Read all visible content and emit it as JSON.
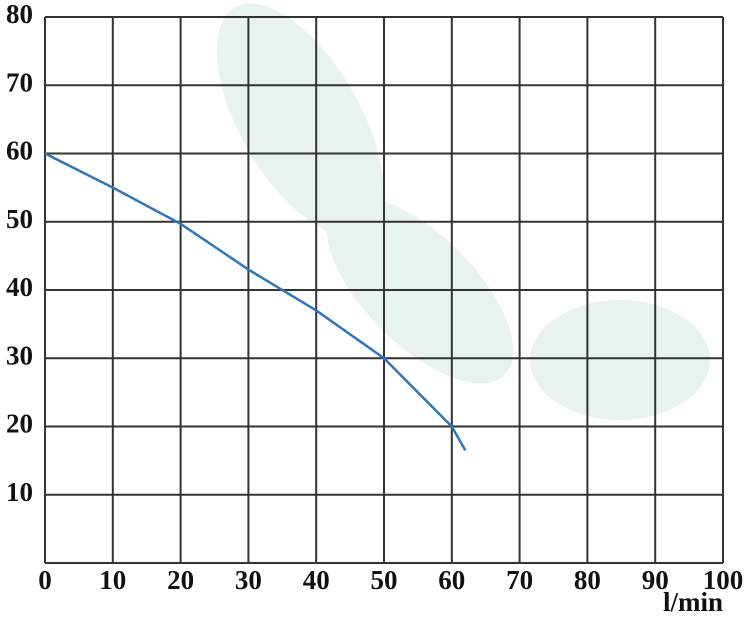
{
  "chart_data": {
    "type": "line",
    "x_label": "l/min",
    "x": [
      0,
      10,
      20,
      30,
      40,
      50,
      56,
      60,
      62
    ],
    "series": [
      {
        "color": "#2f76c0",
        "values": [
          60,
          55,
          49.7,
          43,
          37,
          30,
          24,
          20,
          16.5
        ]
      }
    ],
    "xlim": [
      0,
      100
    ],
    "xticks": [
      0,
      10,
      20,
      30,
      40,
      50,
      60,
      70,
      80,
      90,
      100
    ],
    "ylim": [
      0,
      80
    ],
    "yticks": [
      10,
      20,
      30,
      40,
      50,
      60,
      70,
      80
    ],
    "grid": true
  }
}
